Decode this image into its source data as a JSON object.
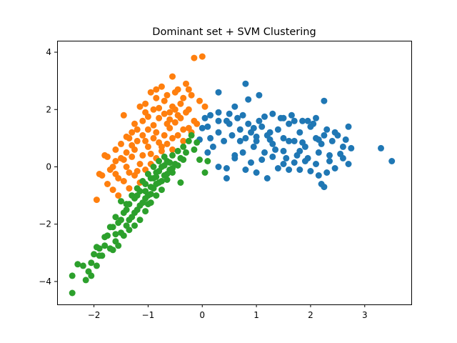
{
  "chart_data": {
    "type": "scatter",
    "title": "Dominant set + SVM Clustering",
    "xlabel": "",
    "ylabel": "",
    "xlim": [
      -2.68,
      3.86
    ],
    "ylim": [
      -4.8,
      4.4
    ],
    "x_ticks": [
      -2,
      -1,
      0,
      1,
      2,
      3
    ],
    "x_tick_labels": [
      "−2",
      "−1",
      "0",
      "1",
      "2",
      "3"
    ],
    "y_ticks": [
      -4,
      -2,
      0,
      2,
      4
    ],
    "y_tick_labels": [
      "−4",
      "−2",
      "0",
      "2",
      "4"
    ],
    "grid": false,
    "legend": "none",
    "series": [
      {
        "color": "#1f77b4",
        "points": [
          [
            0.3,
            1.6
          ],
          [
            0.5,
            1.5
          ],
          [
            0.7,
            1.3
          ],
          [
            0.8,
            1.0
          ],
          [
            0.9,
            1.2
          ],
          [
            1.0,
            0.9
          ],
          [
            1.1,
            1.4
          ],
          [
            1.2,
            1.1
          ],
          [
            1.3,
            0.8
          ],
          [
            1.4,
            1.3
          ],
          [
            1.5,
            1.0
          ],
          [
            1.6,
            1.5
          ],
          [
            1.7,
            0.9
          ],
          [
            1.8,
            1.2
          ],
          [
            1.9,
            0.7
          ],
          [
            2.0,
            1.4
          ],
          [
            2.1,
            1.0
          ],
          [
            2.2,
            0.8
          ],
          [
            2.3,
            1.3
          ],
          [
            2.4,
            0.9
          ],
          [
            2.5,
            1.1
          ],
          [
            2.6,
            0.7
          ],
          [
            2.7,
            1.4
          ],
          [
            2.75,
            0.65
          ],
          [
            3.3,
            0.65
          ],
          [
            3.5,
            0.2
          ],
          [
            0.05,
            1.7
          ],
          [
            0.1,
            1.4
          ],
          [
            0.15,
            1.0
          ],
          [
            0.2,
            0.7
          ],
          [
            0.3,
            1.2
          ],
          [
            0.4,
            0.9
          ],
          [
            0.45,
            1.6
          ],
          [
            0.55,
            1.1
          ],
          [
            0.6,
            0.4
          ],
          [
            0.65,
            1.7
          ],
          [
            0.7,
            0.9
          ],
          [
            0.75,
            0.5
          ],
          [
            0.85,
            1.5
          ],
          [
            0.95,
            0.7
          ],
          [
            1.05,
            1.6
          ],
          [
            1.15,
            0.5
          ],
          [
            1.25,
            1.2
          ],
          [
            1.35,
            0.6
          ],
          [
            1.45,
            1.7
          ],
          [
            1.55,
            0.3
          ],
          [
            1.65,
            1.8
          ],
          [
            1.75,
            0.4
          ],
          [
            1.85,
            1.6
          ],
          [
            1.95,
            0.3
          ],
          [
            2.05,
            1.5
          ],
          [
            2.15,
            0.5
          ],
          [
            2.25,
            1.1
          ],
          [
            2.35,
            0.2
          ],
          [
            2.45,
            1.2
          ],
          [
            2.55,
            0.45
          ],
          [
            2.65,
            0.95
          ],
          [
            0.1,
            0.5
          ],
          [
            0.3,
            0.0
          ],
          [
            0.45,
            -0.05
          ],
          [
            0.6,
            0.3
          ],
          [
            0.8,
            -0.1
          ],
          [
            0.9,
            0.15
          ],
          [
            1.0,
            -0.2
          ],
          [
            1.1,
            0.25
          ],
          [
            1.2,
            -0.4
          ],
          [
            1.3,
            0.35
          ],
          [
            1.4,
            -0.05
          ],
          [
            1.5,
            0.1
          ],
          [
            1.6,
            -0.1
          ],
          [
            1.7,
            0.15
          ],
          [
            1.8,
            -0.1
          ],
          [
            1.9,
            0.2
          ],
          [
            2.0,
            -0.15
          ],
          [
            2.1,
            0.1
          ],
          [
            2.15,
            -0.3
          ],
          [
            2.2,
            -0.6
          ],
          [
            2.25,
            -0.7
          ],
          [
            2.3,
            -0.2
          ],
          [
            2.35,
            0.4
          ],
          [
            2.45,
            -0.05
          ],
          [
            2.6,
            0.3
          ],
          [
            2.7,
            0.1
          ],
          [
            0.45,
            -0.4
          ],
          [
            0.6,
            2.1
          ],
          [
            0.3,
            2.6
          ],
          [
            0.8,
            2.9
          ],
          [
            0.85,
            2.35
          ],
          [
            0.5,
            1.85
          ],
          [
            1.05,
            2.5
          ],
          [
            2.25,
            2.3
          ],
          [
            0.3,
            1.9
          ],
          [
            0.0,
            1.35
          ],
          [
            -0.05,
            0.95
          ],
          [
            0.15,
            1.8
          ],
          [
            1.15,
            1.75
          ],
          [
            1.3,
            1.85
          ],
          [
            1.5,
            1.7
          ],
          [
            1.7,
            1.6
          ],
          [
            1.95,
            1.6
          ],
          [
            2.1,
            1.7
          ],
          [
            1.5,
            0.55
          ],
          [
            1.6,
            0.9
          ],
          [
            1.8,
            0.55
          ],
          [
            1.0,
            1.05
          ],
          [
            1.25,
            0.95
          ],
          [
            0.75,
            1.8
          ],
          [
            0.95,
            1.35
          ],
          [
            1.85,
            0.85
          ],
          [
            2.15,
            0.95
          ]
        ]
      },
      {
        "color": "#ff7f0e",
        "points": [
          [
            -1.8,
            0.4
          ],
          [
            -1.7,
            -0.1
          ],
          [
            -1.6,
            0.2
          ],
          [
            -1.5,
            0.8
          ],
          [
            -1.4,
            0.5
          ],
          [
            -1.3,
            1.2
          ],
          [
            -1.2,
            0.9
          ],
          [
            -1.1,
            1.6
          ],
          [
            -1.0,
            1.3
          ],
          [
            -0.9,
            2.0
          ],
          [
            -0.8,
            1.7
          ],
          [
            -0.7,
            2.3
          ],
          [
            -0.6,
            1.9
          ],
          [
            -0.5,
            2.6
          ],
          [
            -0.4,
            2.2
          ],
          [
            -0.3,
            2.9
          ],
          [
            -0.2,
            2.5
          ],
          [
            -0.1,
            1.5
          ],
          [
            -0.15,
            3.8
          ],
          [
            0.0,
            3.85
          ],
          [
            -0.55,
            3.15
          ],
          [
            -1.95,
            -1.15
          ],
          [
            -1.85,
            -0.3
          ],
          [
            -1.75,
            -0.6
          ],
          [
            -1.65,
            0.0
          ],
          [
            -1.55,
            -0.4
          ],
          [
            -1.45,
            0.25
          ],
          [
            -1.35,
            -0.2
          ],
          [
            -1.25,
            0.6
          ],
          [
            -1.15,
            0.1
          ],
          [
            -1.05,
            0.9
          ],
          [
            -0.95,
            0.45
          ],
          [
            -0.85,
            1.2
          ],
          [
            -0.75,
            0.7
          ],
          [
            -0.65,
            1.5
          ],
          [
            -0.55,
            1.0
          ],
          [
            -0.45,
            1.8
          ],
          [
            -0.35,
            1.3
          ],
          [
            -0.25,
            2.0
          ],
          [
            -0.15,
            1.6
          ],
          [
            -1.45,
            1.8
          ],
          [
            -1.35,
            1.0
          ],
          [
            -1.25,
            1.5
          ],
          [
            -1.15,
            2.1
          ],
          [
            -1.05,
            1.9
          ],
          [
            -0.95,
            2.6
          ],
          [
            -0.85,
            2.4
          ],
          [
            -0.75,
            2.8
          ],
          [
            -0.65,
            2.5
          ],
          [
            -0.55,
            2.1
          ],
          [
            -0.45,
            2.7
          ],
          [
            -0.35,
            2.4
          ],
          [
            -0.25,
            2.7
          ],
          [
            -0.05,
            2.3
          ],
          [
            0.05,
            2.1
          ],
          [
            -1.65,
            -0.8
          ],
          [
            -1.55,
            -1.0
          ],
          [
            -1.45,
            -0.5
          ],
          [
            -1.35,
            -0.75
          ],
          [
            -1.25,
            -0.3
          ],
          [
            -1.15,
            -0.55
          ],
          [
            -1.05,
            -0.1
          ],
          [
            -0.95,
            0.1
          ],
          [
            -0.85,
            0.3
          ],
          [
            -0.75,
            0.55
          ],
          [
            -0.65,
            0.8
          ],
          [
            -0.55,
            0.6
          ],
          [
            -0.45,
            1.1
          ],
          [
            -0.35,
            0.9
          ],
          [
            -0.25,
            1.35
          ],
          [
            -1.4,
            0.0
          ],
          [
            -1.3,
            0.35
          ],
          [
            -1.2,
            -0.15
          ],
          [
            -1.1,
            0.4
          ],
          [
            -1.0,
            0.7
          ],
          [
            -0.9,
            1.0
          ],
          [
            -0.8,
            0.85
          ],
          [
            -0.7,
            1.1
          ],
          [
            -0.6,
            1.35
          ],
          [
            -0.5,
            1.55
          ],
          [
            -1.6,
            0.6
          ],
          [
            -1.5,
            0.3
          ],
          [
            -1.4,
            1.05
          ],
          [
            -1.3,
            0.75
          ],
          [
            -1.2,
            1.3
          ],
          [
            -1.1,
            1.1
          ],
          [
            -1.0,
            1.75
          ],
          [
            -0.9,
            1.45
          ],
          [
            -0.8,
            2.05
          ],
          [
            -0.7,
            1.85
          ],
          [
            -0.6,
            1.65
          ],
          [
            -0.5,
            2.0
          ],
          [
            -0.4,
            1.7
          ],
          [
            -0.3,
            1.9
          ],
          [
            -0.2,
            1.2
          ],
          [
            -1.75,
            0.35
          ],
          [
            -1.9,
            -0.25
          ],
          [
            -1.6,
            -0.25
          ],
          [
            -1.05,
            2.2
          ],
          [
            -0.85,
            2.7
          ]
        ]
      },
      {
        "color": "#2ca02c",
        "points": [
          [
            -2.4,
            -4.4
          ],
          [
            -2.4,
            -3.8
          ],
          [
            -2.3,
            -3.4
          ],
          [
            -2.2,
            -3.45
          ],
          [
            -2.15,
            -3.95
          ],
          [
            -2.1,
            -3.65
          ],
          [
            -2.05,
            -3.35
          ],
          [
            -2.0,
            -3.05
          ],
          [
            -1.95,
            -3.45
          ],
          [
            -1.9,
            -2.85
          ],
          [
            -1.85,
            -3.1
          ],
          [
            -1.8,
            -2.75
          ],
          [
            -1.75,
            -2.4
          ],
          [
            -1.7,
            -2.85
          ],
          [
            -1.65,
            -2.1
          ],
          [
            -1.6,
            -2.6
          ],
          [
            -1.55,
            -1.95
          ],
          [
            -1.5,
            -2.3
          ],
          [
            -1.45,
            -1.6
          ],
          [
            -1.4,
            -2.05
          ],
          [
            -1.35,
            -1.3
          ],
          [
            -1.3,
            -1.75
          ],
          [
            -1.25,
            -1.1
          ],
          [
            -1.2,
            -1.5
          ],
          [
            -1.15,
            -0.85
          ],
          [
            -1.1,
            -1.25
          ],
          [
            -1.05,
            -0.6
          ],
          [
            -1.0,
            -1.0
          ],
          [
            -0.95,
            -0.4
          ],
          [
            -0.9,
            -0.75
          ],
          [
            -0.85,
            -0.2
          ],
          [
            -0.8,
            -0.55
          ],
          [
            -0.75,
            0.0
          ],
          [
            -0.7,
            -0.3
          ],
          [
            -0.65,
            0.2
          ],
          [
            -0.6,
            -0.1
          ],
          [
            -0.55,
            0.4
          ],
          [
            -0.5,
            0.1
          ],
          [
            -0.45,
            0.55
          ],
          [
            -0.4,
            0.3
          ],
          [
            -0.35,
            0.7
          ],
          [
            -0.3,
            0.5
          ],
          [
            -0.25,
            0.9
          ],
          [
            -0.2,
            1.1
          ],
          [
            -0.15,
            0.6
          ],
          [
            -0.1,
            0.85
          ],
          [
            -0.05,
            0.25
          ],
          [
            0.1,
            0.2
          ],
          [
            0.05,
            -0.2
          ],
          [
            -0.4,
            -0.55
          ],
          [
            -1.6,
            -1.75
          ],
          [
            -1.5,
            -1.2
          ],
          [
            -1.4,
            -1.5
          ],
          [
            -1.3,
            -1.0
          ],
          [
            -1.2,
            -0.75
          ],
          [
            -1.1,
            -0.5
          ],
          [
            -1.0,
            -0.25
          ],
          [
            -0.9,
            0.0
          ],
          [
            -0.8,
            0.2
          ],
          [
            -0.7,
            0.35
          ],
          [
            -1.25,
            -2.05
          ],
          [
            -1.15,
            -1.85
          ],
          [
            -1.05,
            -1.55
          ],
          [
            -0.95,
            -1.25
          ],
          [
            -0.85,
            -1.0
          ],
          [
            -0.75,
            -0.8
          ],
          [
            -0.65,
            -0.45
          ],
          [
            -0.55,
            -0.2
          ],
          [
            -1.45,
            -2.4
          ],
          [
            -1.35,
            -2.2
          ],
          [
            -1.7,
            -2.1
          ],
          [
            -1.6,
            -2.35
          ],
          [
            -1.55,
            -2.75
          ],
          [
            -1.65,
            -2.9
          ],
          [
            -1.8,
            -2.45
          ],
          [
            -1.9,
            -3.1
          ],
          [
            -2.05,
            -3.8
          ],
          [
            -1.95,
            -2.8
          ],
          [
            -1.2,
            -1.0
          ],
          [
            -1.05,
            -0.85
          ],
          [
            -0.95,
            -0.95
          ],
          [
            -0.85,
            -0.6
          ],
          [
            -0.75,
            -0.5
          ],
          [
            -0.65,
            -0.25
          ],
          [
            -0.55,
            -0.05
          ],
          [
            -1.0,
            -1.3
          ],
          [
            -0.9,
            -0.4
          ],
          [
            -0.8,
            -0.15
          ],
          [
            -0.7,
            0.05
          ],
          [
            -0.6,
            0.15
          ],
          [
            -1.35,
            -1.85
          ],
          [
            -1.25,
            -1.6
          ],
          [
            -1.15,
            -1.35
          ],
          [
            -1.05,
            -1.1
          ],
          [
            -0.95,
            -0.7
          ],
          [
            -0.85,
            -0.35
          ],
          [
            -1.5,
            -1.85
          ],
          [
            -1.4,
            -1.3
          ],
          [
            -0.45,
            0.05
          ],
          [
            -0.35,
            0.25
          ]
        ]
      }
    ]
  }
}
